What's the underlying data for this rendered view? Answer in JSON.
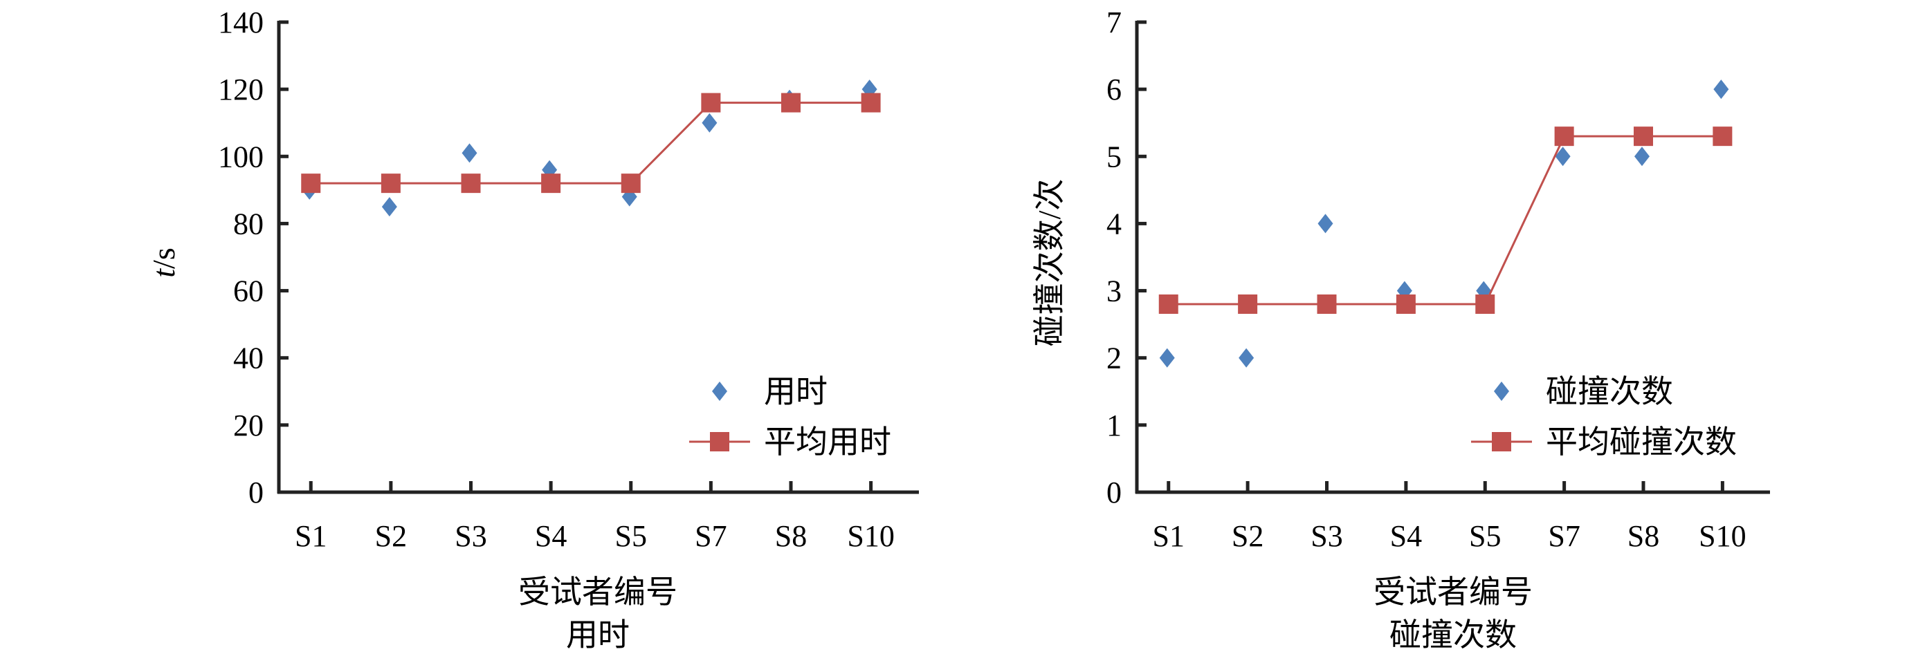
{
  "chart_data": [
    {
      "type": "line",
      "title": "用时",
      "xlabel": "受试者编号",
      "ylabel_italic": "t",
      "ylabel_unit": "/s",
      "categories": [
        "S1",
        "S2",
        "S3",
        "S4",
        "S5",
        "S7",
        "S8",
        "S10"
      ],
      "ylim": [
        0,
        140
      ],
      "yticks": [
        0,
        20,
        40,
        60,
        80,
        100,
        120,
        140
      ],
      "grid": false,
      "legend_position": "bottom-right",
      "series": [
        {
          "name": "用时",
          "style": "scatter",
          "marker": "diamond",
          "color": "#4F81BD",
          "values": [
            90,
            85,
            101,
            96,
            88,
            110,
            117,
            120
          ]
        },
        {
          "name": "平均用时",
          "style": "line",
          "marker": "square",
          "color": "#C0504D",
          "values": [
            92,
            92,
            92,
            92,
            92,
            116,
            116,
            116
          ]
        }
      ]
    },
    {
      "type": "line",
      "title": "碰撞次数",
      "xlabel": "受试者编号",
      "ylabel": "碰撞次数/次",
      "categories": [
        "S1",
        "S2",
        "S3",
        "S4",
        "S5",
        "S7",
        "S8",
        "S10"
      ],
      "ylim": [
        0,
        7
      ],
      "yticks": [
        0,
        1,
        2,
        3,
        4,
        5,
        6,
        7
      ],
      "grid": false,
      "legend_position": "bottom-right",
      "series": [
        {
          "name": "碰撞次数",
          "style": "scatter",
          "marker": "diamond",
          "color": "#4F81BD",
          "values": [
            2,
            2,
            4,
            3,
            3,
            5,
            5,
            6
          ]
        },
        {
          "name": "平均碰撞次数",
          "style": "line",
          "marker": "square",
          "color": "#C0504D",
          "values": [
            2.8,
            2.8,
            2.8,
            2.8,
            2.8,
            5.3,
            5.3,
            5.3
          ]
        }
      ]
    }
  ]
}
